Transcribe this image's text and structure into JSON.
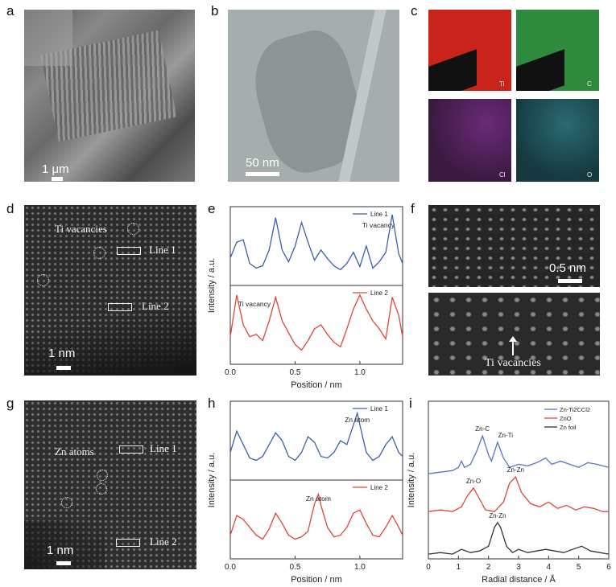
{
  "panels": {
    "a": {
      "label": "a",
      "scale_bar": "1 μm"
    },
    "b": {
      "label": "b",
      "scale_bar": "50 nm"
    },
    "c": {
      "label": "c",
      "maps": [
        "Ti",
        "C",
        "Cl",
        "O"
      ],
      "map_colors": [
        "#c8241c",
        "#2e8a3c",
        "#6a2a78",
        "#2a6a72"
      ]
    },
    "d": {
      "label": "d",
      "annotations": [
        "Ti vacancies",
        "Line 1",
        "Line 2"
      ],
      "scale_bar": "1 nm"
    },
    "e": {
      "label": "e"
    },
    "f": {
      "label": "f",
      "scale_bar": "0.5 nm",
      "annotation": "Ti vacancies"
    },
    "g": {
      "label": "g",
      "annotations": [
        "Zn atoms",
        "Line 1",
        "Line 2"
      ],
      "scale_bar": "1 nm"
    },
    "h": {
      "label": "h"
    },
    "i": {
      "label": "i"
    }
  },
  "chart_data": [
    {
      "id": "e",
      "type": "line",
      "xlabel": "Position / nm",
      "ylabel": "Intensity / a.u.",
      "xlim": [
        0,
        1.33
      ],
      "xticks": [
        "0.0",
        "0.5",
        "1.0"
      ],
      "subplots": [
        {
          "name": "Line 1",
          "color": "#3a5fb0",
          "annotation": "Ti vacancy",
          "x": [
            0.0,
            0.05,
            0.1,
            0.15,
            0.2,
            0.25,
            0.3,
            0.35,
            0.4,
            0.45,
            0.5,
            0.55,
            0.6,
            0.65,
            0.7,
            0.75,
            0.8,
            0.85,
            0.9,
            0.95,
            1.0,
            1.05,
            1.1,
            1.15,
            1.2,
            1.25,
            1.3,
            1.33
          ],
          "y": [
            0.35,
            0.55,
            0.58,
            0.28,
            0.22,
            0.25,
            0.45,
            0.86,
            0.45,
            0.3,
            0.5,
            0.8,
            0.55,
            0.32,
            0.45,
            0.34,
            0.25,
            0.2,
            0.28,
            0.42,
            0.24,
            0.5,
            0.22,
            0.3,
            0.42,
            0.9,
            0.4,
            0.28
          ]
        },
        {
          "name": "Line 2",
          "color": "#e04538",
          "annotation": "Ti vacancy",
          "x": [
            0.0,
            0.05,
            0.1,
            0.15,
            0.2,
            0.25,
            0.3,
            0.35,
            0.4,
            0.45,
            0.5,
            0.55,
            0.6,
            0.65,
            0.7,
            0.75,
            0.8,
            0.85,
            0.9,
            0.95,
            1.0,
            1.05,
            1.1,
            1.15,
            1.2,
            1.25,
            1.3,
            1.33
          ],
          "y": [
            0.35,
            0.88,
            0.5,
            0.35,
            0.38,
            0.3,
            0.55,
            0.85,
            0.55,
            0.4,
            0.25,
            0.18,
            0.3,
            0.45,
            0.5,
            0.38,
            0.28,
            0.22,
            0.45,
            0.7,
            0.88,
            0.7,
            0.55,
            0.45,
            0.32,
            0.85,
            0.62,
            0.35
          ]
        }
      ]
    },
    {
      "id": "h",
      "type": "line",
      "xlabel": "Position / nm",
      "ylabel": "Intensity / a.u.",
      "xlim": [
        0,
        1.33
      ],
      "xticks": [
        "0.0",
        "0.5",
        "1.0"
      ],
      "subplots": [
        {
          "name": "Line 1",
          "color": "#3a5fb0",
          "annotation": "Zn atom",
          "x": [
            0.0,
            0.05,
            0.1,
            0.15,
            0.2,
            0.25,
            0.3,
            0.35,
            0.4,
            0.45,
            0.5,
            0.55,
            0.6,
            0.65,
            0.7,
            0.75,
            0.8,
            0.85,
            0.9,
            0.95,
            0.98,
            1.0,
            1.05,
            1.1,
            1.15,
            1.2,
            1.25,
            1.3,
            1.33
          ],
          "y": [
            0.35,
            0.62,
            0.45,
            0.28,
            0.25,
            0.3,
            0.45,
            0.6,
            0.5,
            0.3,
            0.25,
            0.35,
            0.55,
            0.48,
            0.3,
            0.28,
            0.35,
            0.5,
            0.45,
            0.7,
            0.85,
            0.7,
            0.35,
            0.25,
            0.3,
            0.45,
            0.55,
            0.35,
            0.3
          ]
        },
        {
          "name": "Line 2",
          "color": "#e04538",
          "annotation": "Zn atom",
          "x": [
            0.0,
            0.05,
            0.1,
            0.15,
            0.2,
            0.25,
            0.3,
            0.35,
            0.4,
            0.45,
            0.5,
            0.55,
            0.6,
            0.65,
            0.68,
            0.7,
            0.75,
            0.8,
            0.85,
            0.9,
            0.95,
            1.0,
            1.05,
            1.1,
            1.15,
            1.2,
            1.25,
            1.3,
            1.33
          ],
          "y": [
            0.3,
            0.55,
            0.5,
            0.4,
            0.3,
            0.25,
            0.38,
            0.58,
            0.45,
            0.3,
            0.25,
            0.28,
            0.35,
            0.7,
            0.82,
            0.68,
            0.4,
            0.28,
            0.3,
            0.4,
            0.58,
            0.62,
            0.45,
            0.3,
            0.28,
            0.4,
            0.55,
            0.4,
            0.3
          ]
        }
      ]
    },
    {
      "id": "i",
      "type": "line",
      "xlabel": "Radial distance / Å",
      "ylabel": "Intensity / a.u.",
      "xlim": [
        0,
        6
      ],
      "xticks": [
        "0",
        "1",
        "2",
        "3",
        "4",
        "5",
        "6"
      ],
      "legend": "top-right",
      "series": [
        {
          "name": "Zn-Ti2CCl2",
          "color": "#5a72c8",
          "x": [
            0,
            0.4,
            0.8,
            1.0,
            1.1,
            1.2,
            1.4,
            1.6,
            1.8,
            2.0,
            2.1,
            2.3,
            2.5,
            2.7,
            3.0,
            3.3,
            3.6,
            3.9,
            4.1,
            4.4,
            4.7,
            5.0,
            5.3,
            5.6,
            6.0
          ],
          "y": [
            0.54,
            0.55,
            0.56,
            0.58,
            0.62,
            0.58,
            0.6,
            0.68,
            0.78,
            0.66,
            0.62,
            0.74,
            0.64,
            0.58,
            0.6,
            0.59,
            0.61,
            0.64,
            0.6,
            0.62,
            0.6,
            0.58,
            0.61,
            0.6,
            0.58
          ]
        },
        {
          "name": "ZnO",
          "color": "#e04538",
          "x": [
            0,
            0.4,
            0.8,
            1.1,
            1.3,
            1.5,
            1.7,
            1.9,
            2.2,
            2.5,
            2.7,
            2.9,
            3.1,
            3.4,
            3.7,
            4.0,
            4.3,
            4.6,
            4.9,
            5.2,
            5.5,
            5.8,
            6.0
          ],
          "y": [
            0.3,
            0.31,
            0.3,
            0.33,
            0.4,
            0.45,
            0.38,
            0.31,
            0.3,
            0.36,
            0.48,
            0.52,
            0.42,
            0.35,
            0.33,
            0.36,
            0.32,
            0.34,
            0.31,
            0.33,
            0.32,
            0.3,
            0.3
          ]
        },
        {
          "name": "Zn foil",
          "color": "#333333",
          "x": [
            0,
            0.4,
            0.8,
            1.1,
            1.4,
            1.7,
            2.0,
            2.2,
            2.3,
            2.4,
            2.6,
            2.8,
            3.0,
            3.3,
            3.6,
            3.9,
            4.2,
            4.5,
            4.8,
            5.1,
            5.4,
            5.7,
            6.0
          ],
          "y": [
            0.03,
            0.04,
            0.03,
            0.06,
            0.04,
            0.05,
            0.08,
            0.2,
            0.23,
            0.2,
            0.08,
            0.04,
            0.06,
            0.04,
            0.05,
            0.06,
            0.05,
            0.04,
            0.06,
            0.08,
            0.05,
            0.04,
            0.03
          ]
        }
      ],
      "peak_labels": [
        "Zn-C",
        "Zn-Ti",
        "Zn-O",
        "Zn-Zn",
        "Zn-Zn"
      ]
    }
  ]
}
